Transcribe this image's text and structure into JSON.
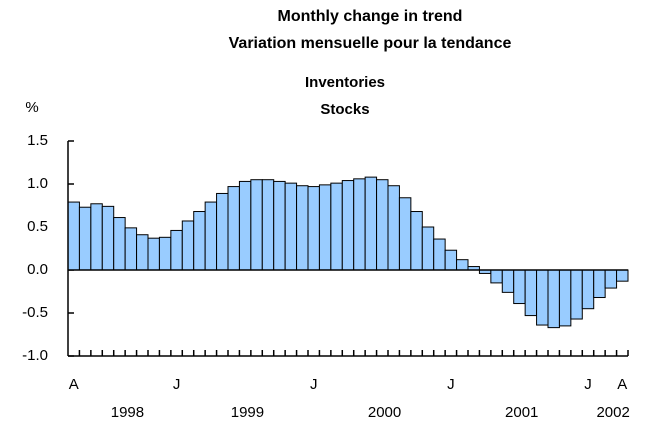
{
  "chart_data": {
    "type": "bar",
    "title": [
      "Monthly change in trend",
      "Variation mensuelle pour la tendance"
    ],
    "subtitle": [
      "Inventories",
      "Stocks"
    ],
    "y_label": "%",
    "categories": [
      "A",
      null,
      null,
      null,
      null,
      null,
      null,
      null,
      null,
      "J",
      null,
      null,
      null,
      null,
      null,
      null,
      null,
      null,
      null,
      null,
      null,
      "J",
      null,
      null,
      null,
      null,
      null,
      null,
      null,
      null,
      null,
      null,
      null,
      "J",
      null,
      null,
      null,
      null,
      null,
      null,
      null,
      null,
      null,
      null,
      null,
      "J",
      null,
      null,
      "A"
    ],
    "year_labels": [
      "1998",
      "1999",
      "2000",
      "2001",
      "2002"
    ],
    "values": [
      0.79,
      0.73,
      0.77,
      0.74,
      0.61,
      0.49,
      0.41,
      0.37,
      0.38,
      0.46,
      0.57,
      0.68,
      0.79,
      0.89,
      0.97,
      1.03,
      1.05,
      1.05,
      1.03,
      1.01,
      0.98,
      0.97,
      0.99,
      1.01,
      1.04,
      1.06,
      1.08,
      1.05,
      0.98,
      0.84,
      0.68,
      0.5,
      0.36,
      0.23,
      0.12,
      0.04,
      -0.04,
      -0.15,
      -0.26,
      -0.39,
      -0.53,
      -0.64,
      -0.67,
      -0.65,
      -0.57,
      -0.45,
      -0.32,
      -0.21,
      -0.13
    ],
    "color": "#99ccff",
    "ylim": [
      -1.0,
      1.5
    ],
    "yticks": [
      1.5,
      {
        "value": 1.0,
        "label": "1.0"
      },
      0.5,
      {
        "value": 0.0,
        "label": "0.0"
      },
      -0.5,
      {
        "value": -1.0,
        "label": "-1.0"
      }
    ]
  }
}
